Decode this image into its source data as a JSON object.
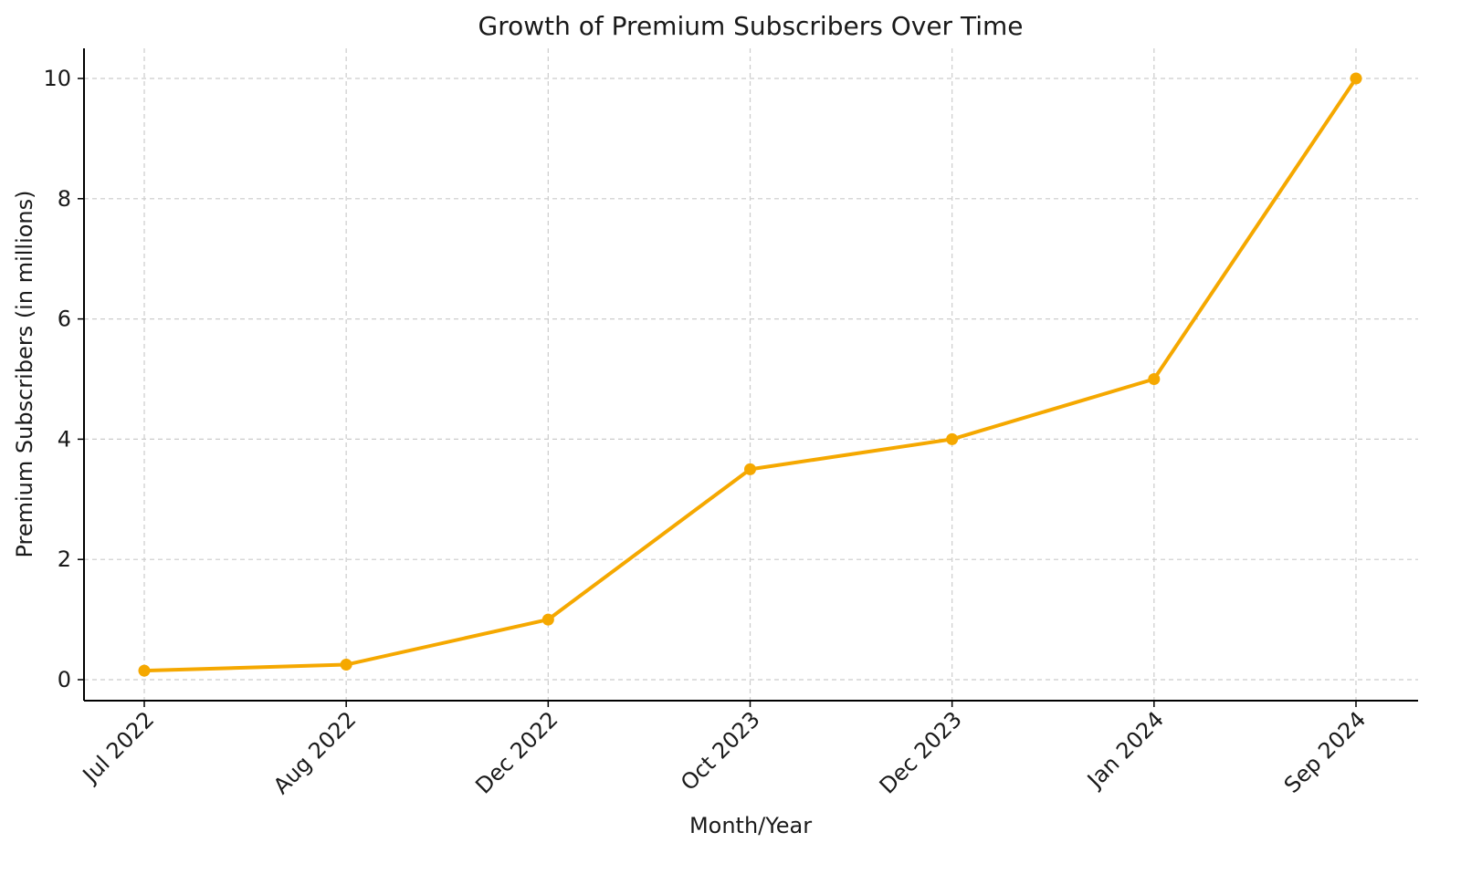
{
  "chart_data": {
    "type": "line",
    "title": "Growth of Premium Subscribers Over Time",
    "xlabel": "Month/Year",
    "ylabel": "Premium Subscribers (in millions)",
    "categories": [
      "Jul 2022",
      "Aug 2022",
      "Dec 2022",
      "Oct 2023",
      "Dec 2023",
      "Jan 2024",
      "Sep 2024"
    ],
    "series": [
      {
        "name": "Premium Subscribers",
        "values": [
          0.15,
          0.25,
          1.0,
          3.5,
          4.0,
          5.0,
          10.0
        ],
        "color": "#f5a800",
        "marker": "circle"
      }
    ],
    "yticks": [
      0,
      2,
      4,
      6,
      8,
      10
    ],
    "ylim": [
      -0.35,
      10.5
    ],
    "grid": true,
    "grid_style": "dashed",
    "legend": false
  }
}
